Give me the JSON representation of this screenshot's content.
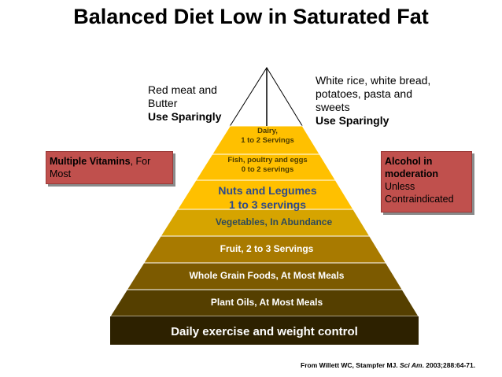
{
  "title": "Balanced Diet Low in Saturated Fat",
  "pyramid": {
    "tiers": [
      {
        "line1": "Dairy,",
        "line2": "1 to 2 Servings",
        "color": "#ffc000"
      },
      {
        "line1": "Fish, poultry and eggs",
        "line2": "0 to 2 servings",
        "color": "#ffc000"
      },
      {
        "line1": "Nuts and Legumes",
        "line2": "1 to 3 servings",
        "color": "#ffc000"
      },
      {
        "line1": "Vegetables, In Abundance",
        "line2": "",
        "color": "#d6a400"
      },
      {
        "line1": "Fruit, 2 to 3 Servings",
        "line2": "",
        "color": "#a87a00"
      },
      {
        "line1": "Whole Grain Foods, At Most Meals",
        "line2": "",
        "color": "#7c5a00"
      },
      {
        "line1": "Plant Oils, At Most Meals",
        "line2": "",
        "color": "#553f00"
      },
      {
        "line1": "Daily exercise and weight control",
        "line2": "",
        "color": "#2d2100"
      }
    ]
  },
  "notes": {
    "left_top_line1": "Red meat and",
    "left_top_line2": "Butter",
    "left_top_line3": "Use Sparingly",
    "right_top_line1": "White rice, white bread,",
    "right_top_line2": "potatoes, pasta and",
    "right_top_line3": "sweets",
    "right_top_line4": "Use Sparingly"
  },
  "boxes": {
    "left_bold": "Multiple Vitamins",
    "left_rest": ", For Most",
    "right_line1": "Alcohol in",
    "right_line2": "moderation",
    "right_line3": "Unless",
    "right_line4": "Contraindicated"
  },
  "citation": {
    "prefix": "From Willett WC, Stampfer MJ. ",
    "journal": "Sci Am",
    "suffix": ". 2003;288:64-71."
  }
}
